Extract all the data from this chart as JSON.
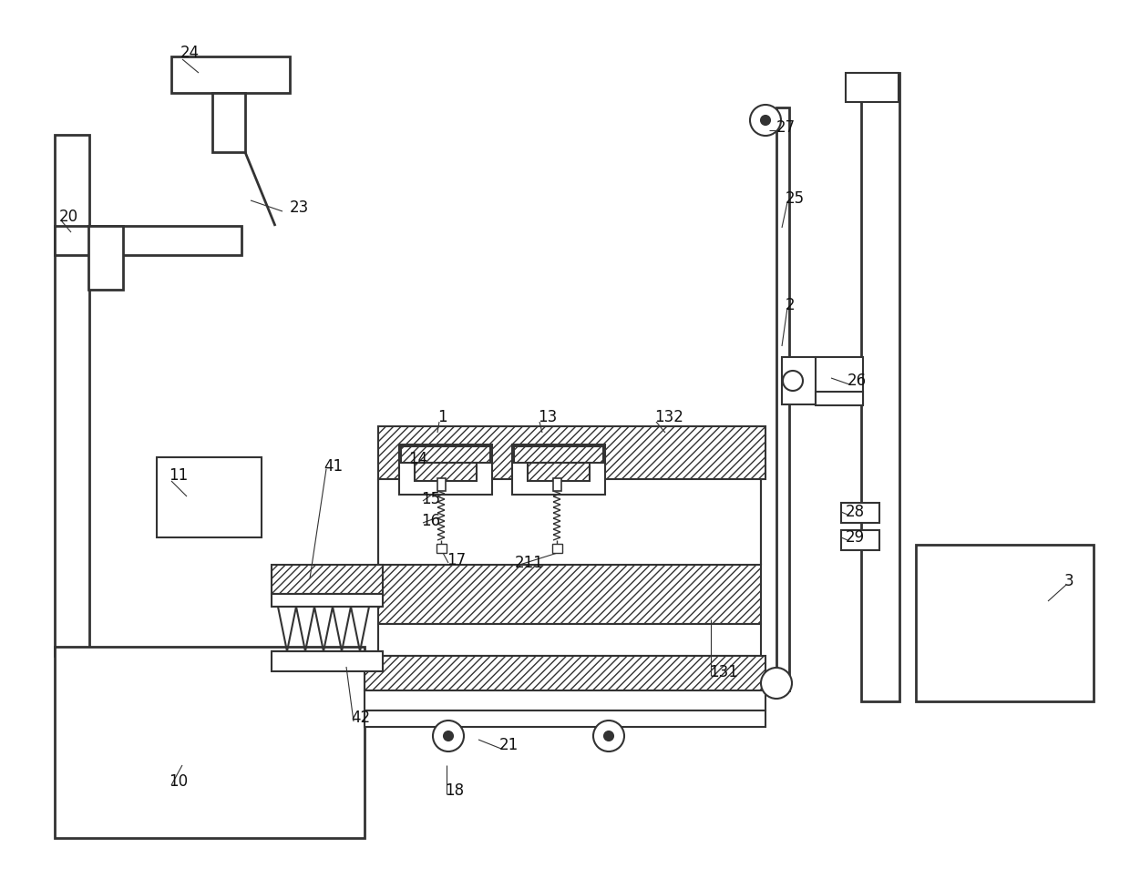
{
  "bg": "#ffffff",
  "lc": "#333333",
  "lw": 1.5,
  "tlw": 2.0,
  "labels": [
    [
      "24",
      198,
      58
    ],
    [
      "23",
      318,
      228
    ],
    [
      "20",
      65,
      238
    ],
    [
      "11",
      185,
      522
    ],
    [
      "10",
      185,
      858
    ],
    [
      "1",
      480,
      458
    ],
    [
      "13",
      590,
      458
    ],
    [
      "132",
      718,
      458
    ],
    [
      "14",
      448,
      504
    ],
    [
      "15",
      462,
      548
    ],
    [
      "16",
      462,
      572
    ],
    [
      "17",
      490,
      615
    ],
    [
      "211",
      565,
      618
    ],
    [
      "41",
      355,
      512
    ],
    [
      "42",
      385,
      788
    ],
    [
      "21",
      548,
      818
    ],
    [
      "18",
      488,
      868
    ],
    [
      "2",
      862,
      335
    ],
    [
      "25",
      862,
      218
    ],
    [
      "27",
      852,
      140
    ],
    [
      "26",
      930,
      418
    ],
    [
      "28",
      928,
      562
    ],
    [
      "29",
      928,
      590
    ],
    [
      "131",
      778,
      738
    ],
    [
      "3",
      1168,
      638
    ]
  ]
}
